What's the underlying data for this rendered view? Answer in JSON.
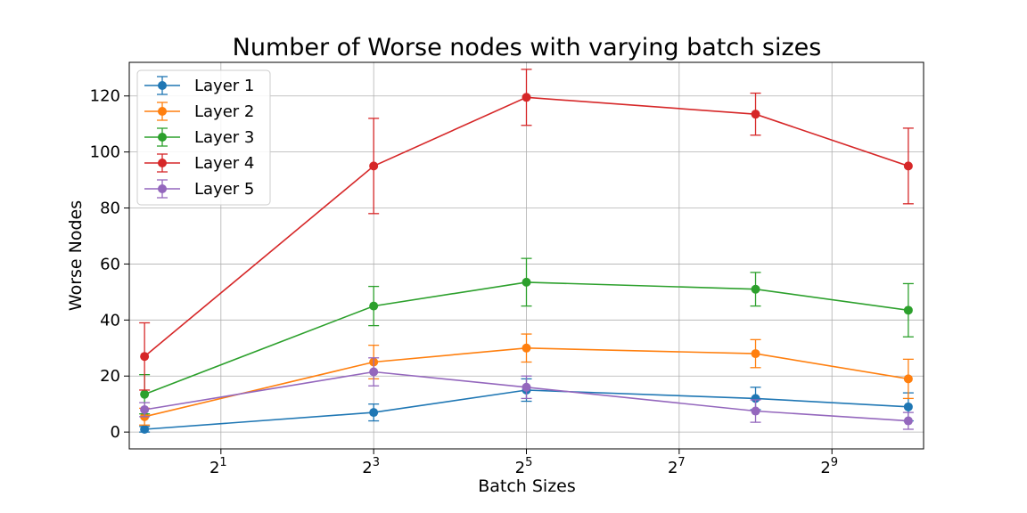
{
  "chart_data": {
    "type": "line",
    "title": "Number of Worse nodes with varying batch sizes",
    "xlabel": "Batch Sizes",
    "ylabel": "Worse Nodes",
    "x_scale": "log2",
    "x": [
      1,
      8,
      32,
      256,
      1024
    ],
    "xticks": [
      {
        "value": 2,
        "base": "2",
        "exp": "1"
      },
      {
        "value": 8,
        "base": "2",
        "exp": "3"
      },
      {
        "value": 32,
        "base": "2",
        "exp": "5"
      },
      {
        "value": 128,
        "base": "2",
        "exp": "7"
      },
      {
        "value": 512,
        "base": "2",
        "exp": "9"
      }
    ],
    "yticks": [
      0,
      20,
      40,
      60,
      80,
      100,
      120
    ],
    "ylim": [
      -6,
      132
    ],
    "grid": true,
    "legend_position": "upper-left",
    "series": [
      {
        "name": "Layer 1",
        "color": "#1f77b4",
        "values": [
          1,
          7,
          15,
          12,
          9
        ],
        "errors": [
          1,
          3,
          4,
          4,
          5
        ]
      },
      {
        "name": "Layer 2",
        "color": "#ff7f0e",
        "values": [
          5.5,
          25,
          30,
          28,
          19
        ],
        "errors": [
          3,
          6,
          5,
          5,
          7
        ]
      },
      {
        "name": "Layer 3",
        "color": "#2ca02c",
        "values": [
          13.5,
          45,
          53.5,
          51,
          43.5
        ],
        "errors": [
          7,
          7,
          8.5,
          6,
          9.5
        ]
      },
      {
        "name": "Layer 4",
        "color": "#d62728",
        "values": [
          27,
          95,
          119.5,
          113.5,
          95
        ],
        "errors": [
          12,
          17,
          10,
          7.5,
          13.5
        ]
      },
      {
        "name": "Layer 5",
        "color": "#9467bd",
        "values": [
          8,
          21.5,
          16,
          7.5,
          4
        ],
        "errors": [
          2.5,
          5,
          4,
          4,
          3
        ]
      }
    ]
  }
}
